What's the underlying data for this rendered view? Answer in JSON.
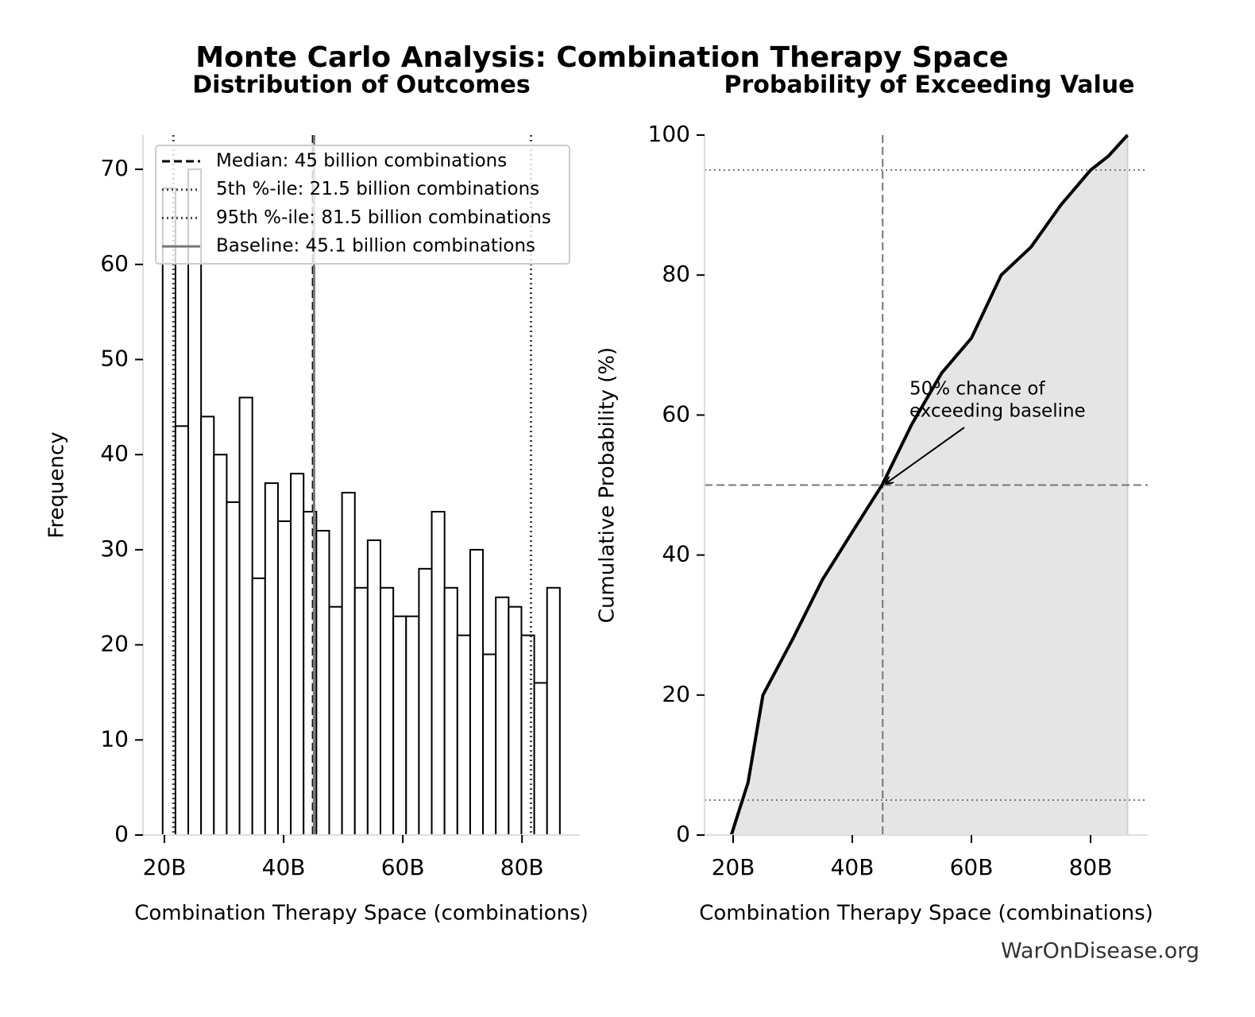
{
  "title": "Monte Carlo Analysis: Combination Therapy Space",
  "watermark": "WarOnDisease.org",
  "chart_data": [
    {
      "type": "histogram",
      "title": "Distribution of Outcomes",
      "xlabel": "Combination Therapy Space (combinations)",
      "ylabel": "Frequency",
      "bins": [
        19.7,
        21.85,
        24.0,
        26.15,
        28.3,
        30.45,
        32.6,
        34.75,
        36.9,
        39.05,
        41.2,
        43.35,
        45.5,
        47.65,
        49.8,
        51.95,
        54.1,
        56.25,
        58.4,
        60.55,
        62.7,
        64.85,
        67.0,
        69.15,
        71.3,
        73.45,
        75.6,
        77.75,
        79.9,
        82.05,
        84.2,
        86.35
      ],
      "values": [
        68,
        43,
        70,
        44,
        40,
        35,
        46,
        27,
        37,
        33,
        38,
        34,
        32,
        24,
        36,
        26,
        31,
        26,
        23,
        23,
        28,
        34,
        26,
        21,
        30,
        19,
        25,
        24,
        21,
        16,
        26
      ],
      "color": "#ffffff",
      "edgecolor": "#000000",
      "xlim": [
        16.4,
        89.7
      ],
      "ylim": [
        0,
        73.6
      ],
      "xticks": [
        {
          "value": 20,
          "label": "20B"
        },
        {
          "value": 40,
          "label": "40B"
        },
        {
          "value": 60,
          "label": "60B"
        },
        {
          "value": 80,
          "label": "80B"
        }
      ],
      "yticks": [
        0,
        10,
        20,
        30,
        40,
        50,
        60,
        70
      ],
      "legend": "upper left",
      "vlines": [
        {
          "name": "Median: 45 billion combinations",
          "value": 45,
          "style": "dashed",
          "color": "#000000"
        },
        {
          "name": "5th %-ile: 21.5 billion combinations",
          "value": 21.5,
          "style": "dotted",
          "color": "#444444"
        },
        {
          "name": "95th %-ile: 81.5 billion combinations",
          "value": 81.5,
          "style": "dotted",
          "color": "#444444"
        },
        {
          "name": "Baseline: 45.1 billion combinations",
          "value": 45.1,
          "style": "solid",
          "color": "#777777"
        }
      ]
    },
    {
      "type": "line",
      "title": "Probability of Exceeding Value",
      "xlabel": "Combination Therapy Space (combinations)",
      "ylabel": "Cumulative Probability (%)",
      "x": [
        19.7,
        21,
        22.5,
        25,
        30,
        35,
        40,
        45,
        50,
        55,
        60,
        65,
        70,
        75,
        80,
        83,
        86.2
      ],
      "values": [
        0,
        3.5,
        7.5,
        20,
        28,
        36.5,
        43.3,
        50,
        58.7,
        66,
        71,
        80,
        84,
        90,
        95,
        97,
        100
      ],
      "color": "#000000",
      "fill": "#e5e5e5",
      "xlim": [
        15.2,
        89.6
      ],
      "ylim": [
        0,
        100
      ],
      "xticks": [
        {
          "value": 20,
          "label": "20B"
        },
        {
          "value": 40,
          "label": "40B"
        },
        {
          "value": 60,
          "label": "60B"
        },
        {
          "value": 80,
          "label": "80B"
        }
      ],
      "yticks": [
        0,
        20,
        40,
        60,
        80,
        100
      ],
      "hlines": [
        {
          "value": 5,
          "style": "dotted"
        },
        {
          "value": 95,
          "style": "dotted"
        },
        {
          "value": 50,
          "style": "dashed"
        }
      ],
      "vlines": [
        {
          "value": 45.1,
          "style": "dashed"
        }
      ],
      "annotation": {
        "text": [
          "50% chance of",
          "exceeding baseline"
        ],
        "x": 45.1,
        "y": 50
      }
    }
  ]
}
